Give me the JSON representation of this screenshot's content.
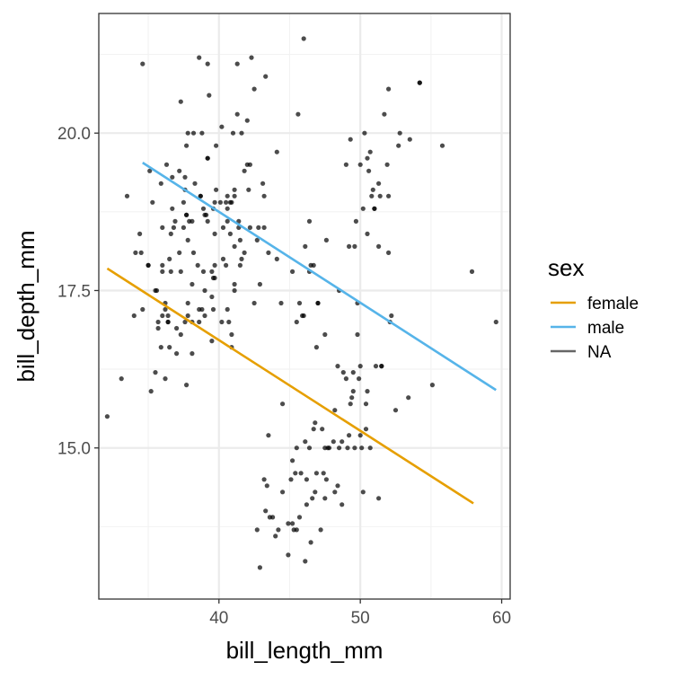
{
  "chart_data": {
    "type": "scatter",
    "xlabel": "bill_length_mm",
    "ylabel": "bill_depth_mm",
    "xlim": [
      31.5,
      60.6
    ],
    "ylim": [
      12.6,
      21.9
    ],
    "x_ticks": [
      40,
      50,
      60
    ],
    "y_ticks": [
      15.0,
      17.5,
      20.0
    ],
    "x_tick_labels": [
      "40",
      "50",
      "60"
    ],
    "y_tick_labels": [
      "15.0",
      "17.5",
      "20.0"
    ],
    "grid": true,
    "legend": {
      "title": "sex",
      "placement": "right",
      "entries": [
        {
          "label": "female",
          "color": "#E69F00"
        },
        {
          "label": "male",
          "color": "#56B4E9"
        },
        {
          "label": "NA",
          "color": "#666666"
        }
      ]
    },
    "points": [
      [
        32.1,
        15.5
      ],
      [
        33.1,
        16.1
      ],
      [
        33.5,
        19.0
      ],
      [
        34.0,
        17.1
      ],
      [
        34.1,
        18.1
      ],
      [
        34.4,
        18.4
      ],
      [
        34.5,
        18.1
      ],
      [
        34.6,
        21.1
      ],
      [
        34.6,
        17.2
      ],
      [
        35.0,
        17.9
      ],
      [
        35.1,
        19.4
      ],
      [
        35.2,
        15.9
      ],
      [
        35.3,
        18.9
      ],
      [
        35.5,
        16.2
      ],
      [
        35.5,
        17.5
      ],
      [
        35.6,
        17.5
      ],
      [
        35.7,
        16.9
      ],
      [
        35.7,
        17.0
      ],
      [
        35.9,
        16.6
      ],
      [
        35.9,
        19.2
      ],
      [
        36.0,
        17.8
      ],
      [
        36.0,
        18.5
      ],
      [
        36.0,
        17.1
      ],
      [
        36.2,
        17.2
      ],
      [
        36.2,
        16.1
      ],
      [
        36.2,
        17.3
      ],
      [
        36.3,
        19.5
      ],
      [
        36.4,
        17.1
      ],
      [
        36.4,
        17.0
      ],
      [
        36.5,
        18.0
      ],
      [
        36.5,
        16.6
      ],
      [
        36.6,
        17.8
      ],
      [
        36.6,
        18.4
      ],
      [
        36.7,
        18.8
      ],
      [
        36.7,
        19.3
      ],
      [
        36.8,
        18.5
      ],
      [
        36.9,
        18.6
      ],
      [
        37.0,
        16.9
      ],
      [
        37.0,
        16.5
      ],
      [
        37.2,
        18.1
      ],
      [
        37.2,
        19.4
      ],
      [
        37.3,
        17.8
      ],
      [
        37.3,
        20.5
      ],
      [
        37.3,
        16.8
      ],
      [
        37.5,
        18.9
      ],
      [
        37.5,
        18.5
      ],
      [
        37.6,
        19.1
      ],
      [
        37.6,
        17.0
      ],
      [
        37.6,
        19.3
      ],
      [
        37.7,
        18.7
      ],
      [
        37.7,
        19.8
      ],
      [
        37.7,
        16.0
      ],
      [
        37.8,
        18.3
      ],
      [
        37.8,
        17.1
      ],
      [
        37.8,
        17.3
      ],
      [
        37.8,
        20.0
      ],
      [
        37.9,
        18.6
      ],
      [
        38.1,
        18.6
      ],
      [
        38.1,
        17.0
      ],
      [
        38.1,
        16.5
      ],
      [
        38.1,
        17.6
      ],
      [
        38.2,
        18.1
      ],
      [
        38.2,
        20.0
      ],
      [
        38.3,
        19.2
      ],
      [
        38.5,
        17.9
      ],
      [
        38.6,
        21.2
      ],
      [
        38.6,
        17.2
      ],
      [
        38.6,
        17.0
      ],
      [
        38.7,
        19.0
      ],
      [
        38.8,
        17.2
      ],
      [
        38.8,
        20.0
      ],
      [
        38.9,
        17.8
      ],
      [
        38.9,
        18.8
      ],
      [
        39.0,
        17.5
      ],
      [
        39.0,
        18.7
      ],
      [
        39.0,
        17.1
      ],
      [
        39.1,
        18.7
      ],
      [
        39.2,
        19.6
      ],
      [
        39.2,
        18.6
      ],
      [
        39.2,
        21.1
      ],
      [
        39.3,
        20.6
      ],
      [
        39.5,
        17.4
      ],
      [
        39.5,
        16.7
      ],
      [
        39.5,
        17.8
      ],
      [
        39.6,
        17.7
      ],
      [
        39.6,
        18.8
      ],
      [
        39.6,
        17.2
      ],
      [
        39.7,
        17.7
      ],
      [
        39.7,
        18.4
      ],
      [
        39.7,
        18.9
      ],
      [
        39.8,
        19.1
      ],
      [
        39.8,
        19.8
      ],
      [
        40.1,
        18.9
      ],
      [
        40.2,
        17.0
      ],
      [
        40.2,
        20.1
      ],
      [
        40.3,
        18.0
      ],
      [
        40.3,
        18.5
      ],
      [
        40.5,
        17.9
      ],
      [
        40.5,
        18.9
      ],
      [
        40.6,
        18.6
      ],
      [
        40.6,
        18.8
      ],
      [
        40.6,
        17.2
      ],
      [
        40.7,
        17.0
      ],
      [
        40.8,
        18.4
      ],
      [
        40.8,
        18.9
      ],
      [
        40.9,
        18.9
      ],
      [
        40.9,
        16.6
      ],
      [
        40.9,
        16.8
      ],
      [
        41.1,
        17.6
      ],
      [
        41.1,
        19.0
      ],
      [
        41.1,
        18.2
      ],
      [
        41.1,
        17.5
      ],
      [
        41.3,
        20.3
      ],
      [
        41.3,
        21.1
      ],
      [
        41.4,
        18.6
      ],
      [
        41.4,
        18.5
      ],
      [
        41.5,
        17.9
      ],
      [
        41.5,
        18.3
      ],
      [
        41.6,
        18.0
      ],
      [
        41.6,
        20.0
      ],
      [
        41.8,
        19.4
      ],
      [
        41.8,
        18.1
      ],
      [
        42.0,
        19.5
      ],
      [
        42.0,
        20.2
      ],
      [
        42.1,
        19.1
      ],
      [
        42.2,
        18.5
      ],
      [
        42.2,
        19.5
      ],
      [
        42.3,
        21.2
      ],
      [
        42.5,
        20.7
      ],
      [
        42.5,
        17.3
      ],
      [
        42.7,
        18.3
      ],
      [
        42.8,
        18.5
      ],
      [
        42.9,
        17.6
      ],
      [
        43.1,
        19.2
      ],
      [
        43.2,
        18.5
      ],
      [
        43.2,
        19.0
      ],
      [
        43.3,
        20.9
      ],
      [
        43.5,
        18.1
      ],
      [
        43.6,
        13.9
      ],
      [
        44.1,
        19.7
      ],
      [
        44.1,
        18.0
      ],
      [
        44.5,
        15.7
      ],
      [
        44.9,
        13.8
      ],
      [
        45.1,
        14.5
      ],
      [
        45.2,
        13.8
      ],
      [
        45.5,
        13.7
      ],
      [
        45.6,
        20.3
      ],
      [
        45.8,
        14.6
      ],
      [
        46.0,
        21.5
      ],
      [
        46.1,
        13.2
      ],
      [
        46.2,
        14.5
      ],
      [
        46.5,
        17.9
      ],
      [
        46.7,
        15.3
      ],
      [
        47.0,
        17.3
      ],
      [
        47.5,
        14.2
      ],
      [
        47.6,
        18.3
      ],
      [
        47.8,
        15.0
      ],
      [
        48.2,
        14.3
      ],
      [
        48.4,
        14.4
      ],
      [
        48.7,
        14.1
      ],
      [
        49.0,
        19.5
      ],
      [
        49.2,
        15.2
      ],
      [
        49.5,
        16.2
      ],
      [
        49.8,
        17.3
      ],
      [
        50.0,
        16.3
      ],
      [
        50.1,
        15.0
      ],
      [
        50.2,
        18.8
      ],
      [
        50.4,
        15.3
      ],
      [
        50.5,
        18.4
      ],
      [
        50.8,
        19.0
      ],
      [
        51.0,
        18.8
      ],
      [
        51.3,
        19.2
      ],
      [
        51.5,
        16.3
      ],
      [
        51.9,
        19.5
      ],
      [
        52.0,
        20.7
      ],
      [
        52.2,
        17.1
      ],
      [
        52.7,
        19.8
      ],
      [
        53.4,
        15.8
      ],
      [
        54.2,
        20.8
      ],
      [
        55.1,
        16.0
      ],
      [
        55.8,
        19.8
      ],
      [
        57.9,
        17.8
      ],
      [
        59.6,
        17.0
      ],
      [
        44.5,
        14.3
      ],
      [
        44.4,
        17.3
      ],
      [
        43.8,
        13.9
      ],
      [
        44.2,
        13.7
      ],
      [
        45.3,
        13.7
      ],
      [
        43.2,
        14.5
      ],
      [
        44.0,
        13.6
      ],
      [
        42.7,
        13.7
      ],
      [
        43.3,
        14.0
      ],
      [
        43.4,
        14.4
      ],
      [
        42.9,
        13.1
      ],
      [
        43.5,
        15.2
      ],
      [
        44.9,
        13.3
      ],
      [
        45.2,
        14.8
      ],
      [
        45.4,
        14.6
      ],
      [
        45.5,
        15.0
      ],
      [
        45.7,
        13.9
      ],
      [
        46.1,
        15.1
      ],
      [
        46.2,
        14.1
      ],
      [
        46.4,
        15.0
      ],
      [
        46.5,
        13.5
      ],
      [
        46.6,
        14.2
      ],
      [
        46.8,
        15.4
      ],
      [
        46.8,
        14.3
      ],
      [
        46.9,
        14.6
      ],
      [
        47.2,
        13.7
      ],
      [
        47.3,
        15.3
      ],
      [
        47.4,
        14.6
      ],
      [
        47.5,
        15.0
      ],
      [
        47.6,
        14.5
      ],
      [
        47.7,
        15.0
      ],
      [
        48.1,
        15.1
      ],
      [
        48.2,
        15.6
      ],
      [
        48.4,
        16.3
      ],
      [
        48.5,
        15.0
      ],
      [
        48.7,
        15.1
      ],
      [
        48.8,
        16.2
      ],
      [
        49.0,
        16.1
      ],
      [
        49.1,
        15.0
      ],
      [
        49.3,
        15.7
      ],
      [
        49.4,
        15.8
      ],
      [
        49.5,
        15.9
      ],
      [
        49.6,
        15.0
      ],
      [
        49.8,
        16.8
      ],
      [
        49.9,
        16.1
      ],
      [
        50.0,
        15.2
      ],
      [
        50.2,
        14.3
      ],
      [
        50.4,
        15.7
      ],
      [
        50.5,
        15.9
      ],
      [
        50.7,
        15.0
      ],
      [
        51.1,
        16.3
      ],
      [
        51.3,
        14.2
      ],
      [
        51.5,
        16.3
      ],
      [
        52.1,
        17.0
      ],
      [
        52.5,
        15.6
      ],
      [
        46.9,
        16.6
      ],
      [
        46.4,
        17.8
      ],
      [
        46.0,
        17.1
      ],
      [
        45.5,
        17.0
      ],
      [
        45.9,
        17.1
      ],
      [
        46.7,
        17.9
      ],
      [
        46.4,
        18.6
      ],
      [
        45.2,
        17.8
      ],
      [
        46.1,
        18.2
      ],
      [
        45.7,
        17.3
      ],
      [
        47.0,
        17.3
      ],
      [
        47.5,
        16.8
      ],
      [
        48.5,
        17.5
      ],
      [
        49.2,
        18.2
      ],
      [
        49.3,
        19.9
      ],
      [
        49.6,
        18.2
      ],
      [
        49.7,
        18.6
      ],
      [
        50.0,
        19.5
      ],
      [
        50.3,
        20.0
      ],
      [
        50.5,
        19.6
      ],
      [
        50.6,
        19.4
      ],
      [
        50.7,
        19.7
      ],
      [
        50.9,
        19.1
      ],
      [
        51.0,
        18.8
      ],
      [
        51.3,
        18.2
      ],
      [
        51.4,
        19.0
      ],
      [
        51.7,
        20.3
      ],
      [
        52.0,
        18.1
      ],
      [
        52.0,
        19.0
      ],
      [
        52.8,
        20.0
      ],
      [
        53.5,
        19.9
      ],
      [
        54.2,
        20.8
      ],
      [
        36.0,
        17.9
      ],
      [
        38.7,
        19.0
      ],
      [
        39.2,
        19.6
      ],
      [
        40.6,
        19.0
      ],
      [
        41.0,
        20.0
      ],
      [
        35.0,
        17.9
      ],
      [
        37.7,
        18.7
      ],
      [
        36.4,
        17.0
      ],
      [
        39.7,
        17.9
      ],
      [
        41.1,
        19.1
      ]
    ],
    "series": [
      {
        "name": "female",
        "color": "#E69F00",
        "x": [
          32.1,
          58.0
        ],
        "y": [
          17.85,
          14.12
        ]
      },
      {
        "name": "male",
        "color": "#56B4E9",
        "x": [
          34.6,
          59.6
        ],
        "y": [
          19.53,
          15.92
        ]
      },
      {
        "name": "NA",
        "color": "#666666",
        "x": [],
        "y": []
      }
    ]
  }
}
